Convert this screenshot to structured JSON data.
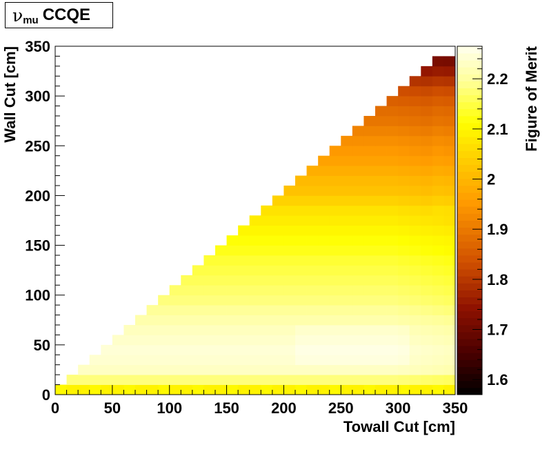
{
  "chart_data": {
    "type": "heatmap",
    "title": {
      "nu": "ν",
      "sub": "mu",
      "rest": "CCQE"
    },
    "xlabel": "Towall Cut [cm]",
    "ylabel": "Wall Cut [cm]",
    "zlabel": "Figure of Merit",
    "xlim": [
      0,
      350
    ],
    "ylim": [
      0,
      350
    ],
    "zlim": [
      1.57,
      2.265
    ],
    "x_ticks": [
      "0",
      "50",
      "100",
      "150",
      "200",
      "250",
      "300",
      "350"
    ],
    "y_ticks": [
      "0",
      "50",
      "100",
      "150",
      "200",
      "250",
      "300",
      "350"
    ],
    "z_ticks": [
      "1.6",
      "1.7",
      "1.8",
      "1.9",
      "2",
      "2.1",
      "2.2"
    ],
    "z_tick_values": [
      1.6,
      1.7,
      1.8,
      1.9,
      2.0,
      2.1,
      2.2
    ],
    "grid": false,
    "bin_width_x": 10,
    "bin_width_y": 10,
    "region": "cells populated where wall cut < towall cut",
    "fom_profile_by_wall_cut": {
      "wall_cut": [
        0,
        10,
        20,
        30,
        40,
        50,
        60,
        70,
        80,
        90,
        100,
        110,
        120,
        130,
        140,
        150,
        160,
        170,
        180,
        190,
        200,
        210,
        220,
        230,
        240,
        250,
        260,
        270,
        280,
        290,
        300,
        310,
        320,
        330
      ],
      "fom": [
        2.1,
        2.18,
        2.23,
        2.24,
        2.245,
        2.235,
        2.225,
        2.21,
        2.195,
        2.18,
        2.17,
        2.16,
        2.15,
        2.14,
        2.125,
        2.115,
        2.1,
        2.085,
        2.07,
        2.045,
        2.02,
        2.005,
        1.985,
        1.965,
        1.95,
        1.935,
        1.915,
        1.895,
        1.88,
        1.86,
        1.835,
        1.8,
        1.76,
        1.72
      ]
    },
    "palette": [
      "#000000",
      "#4a0000",
      "#8f1200",
      "#d05000",
      "#ff9a00",
      "#ffd000",
      "#ffff00",
      "#ffff9a",
      "#ffffee"
    ],
    "palette_stops": [
      0,
      0.12,
      0.25,
      0.38,
      0.55,
      0.68,
      0.78,
      0.9,
      1
    ]
  }
}
